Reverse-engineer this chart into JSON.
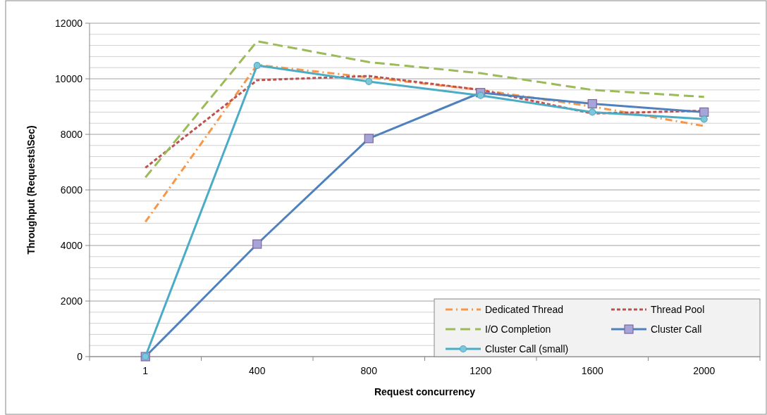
{
  "chart_data": {
    "type": "line",
    "xlabel": "Request concurrency",
    "ylabel": "Throughput (Requests\\Sec)",
    "categories": [
      "1",
      "400",
      "800",
      "1200",
      "1600",
      "2000"
    ],
    "ylim": [
      0,
      12000
    ],
    "yticks": [
      0,
      {
        "value": 400,
        "label": null
      },
      {
        "value": 800,
        "label": null
      },
      {
        "value": 1200,
        "label": null
      },
      {
        "value": 1600,
        "label": null
      },
      2000,
      {
        "value": 2400,
        "label": null
      },
      {
        "value": 2800,
        "label": null
      },
      {
        "value": 3200,
        "label": null
      },
      {
        "value": 3600,
        "label": null
      },
      4000,
      {
        "value": 4400,
        "label": null
      },
      {
        "value": 4800,
        "label": null
      },
      {
        "value": 5200,
        "label": null
      },
      {
        "value": 5600,
        "label": null
      },
      6000,
      {
        "value": 6400,
        "label": null
      },
      {
        "value": 6800,
        "label": null
      },
      {
        "value": 7200,
        "label": null
      },
      {
        "value": 7600,
        "label": null
      },
      8000,
      {
        "value": 8400,
        "label": null
      },
      {
        "value": 8800,
        "label": null
      },
      {
        "value": 9200,
        "label": null
      },
      {
        "value": 9600,
        "label": null
      },
      10000,
      {
        "value": 10400,
        "label": null
      },
      {
        "value": 10800,
        "label": null
      },
      {
        "value": 11200,
        "label": null
      },
      {
        "value": 11600,
        "label": null
      },
      12000
    ],
    "grid": "y",
    "legend": "bottom right",
    "series": [
      {
        "name": "Dedicated Thread",
        "color": "#f79646",
        "line_style": "dashed",
        "marker": "none",
        "values": [
          4850,
          10500,
          10050,
          9600,
          9000,
          8300
        ]
      },
      {
        "name": "Thread Pool",
        "color": "#c0504d",
        "line_style": "dotted",
        "marker": "none",
        "values": [
          6800,
          9950,
          10100,
          9600,
          8750,
          8850
        ]
      },
      {
        "name": "I/O Completion",
        "color": "#9bbb59",
        "line_style": "dashed",
        "marker": "none",
        "values": [
          6450,
          11350,
          10600,
          10200,
          9600,
          9350
        ]
      },
      {
        "name": "Cluster Call",
        "color": "#4f81bd",
        "line_style": "solid",
        "marker": "square",
        "values": [
          0,
          4050,
          7850,
          9500,
          9100,
          8800
        ]
      },
      {
        "name": "Cluster Call (small)",
        "color": "#4bacc6",
        "line_style": "solid",
        "marker": "circle",
        "values": [
          0,
          10480,
          9900,
          9400,
          8800,
          8550
        ]
      }
    ]
  }
}
